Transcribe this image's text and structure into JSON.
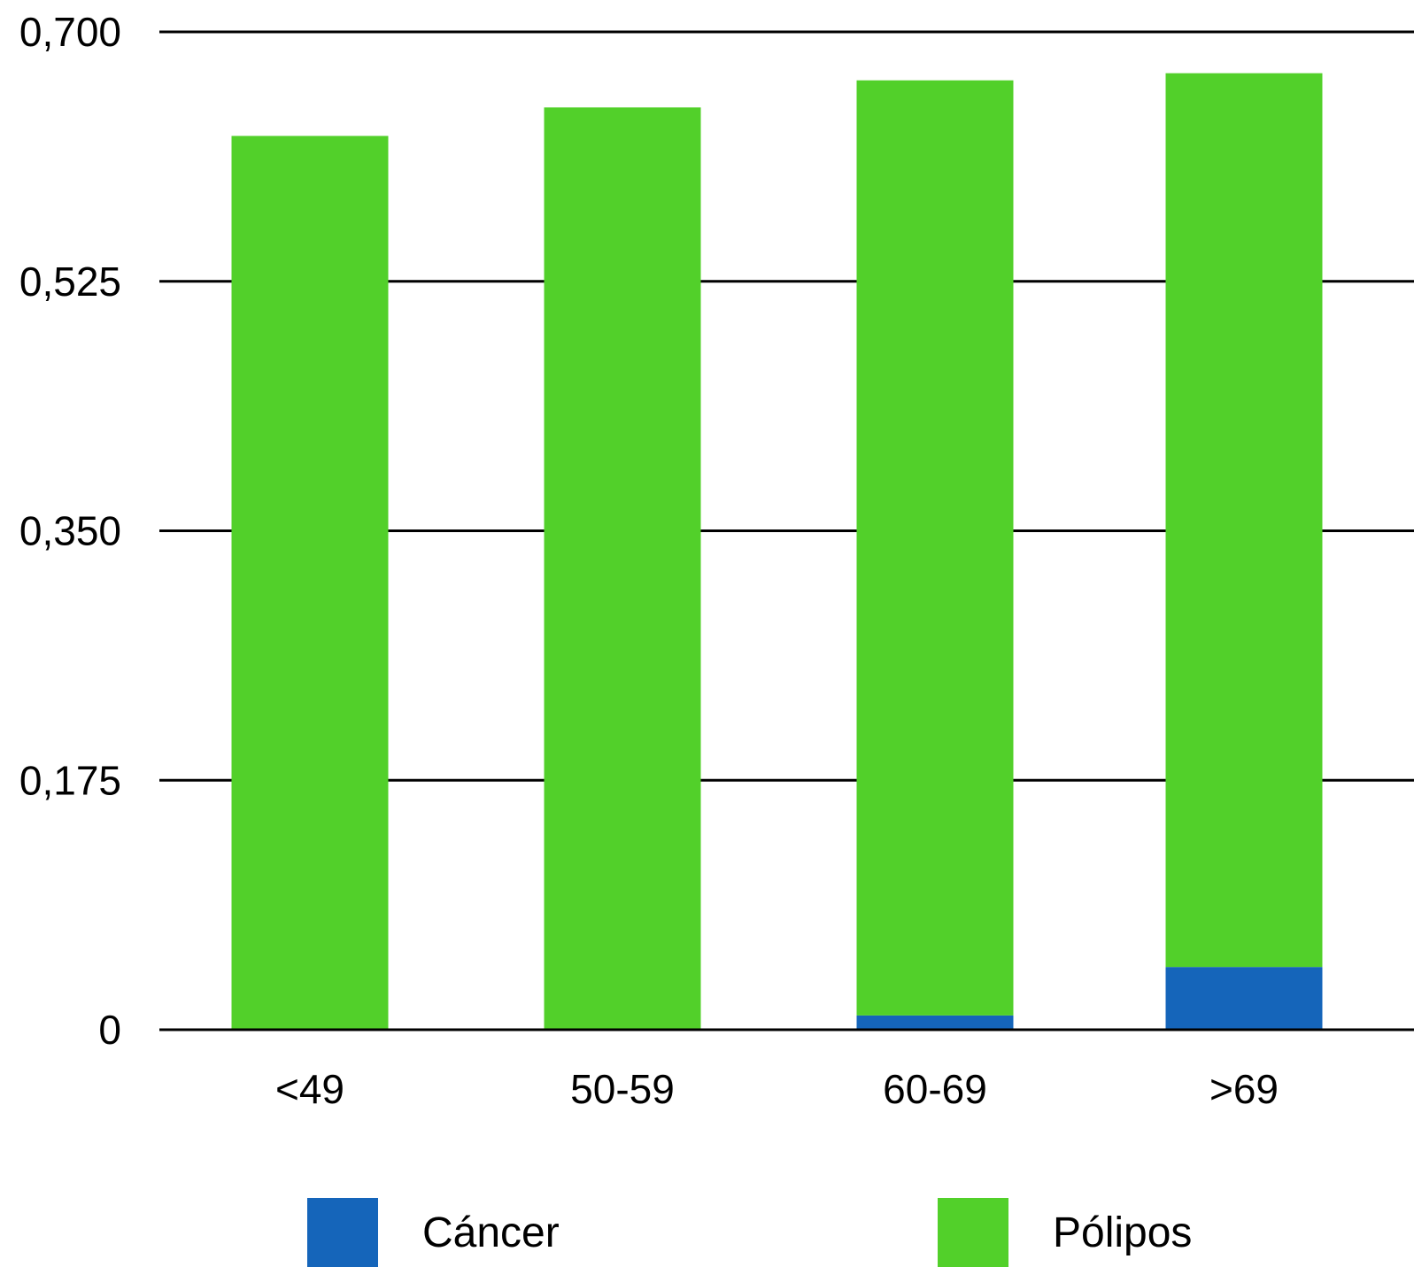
{
  "chart_data": {
    "type": "bar",
    "stacked": true,
    "categories": [
      "<49",
      "50-59",
      "60-69",
      ">69"
    ],
    "series": [
      {
        "name": "Cáncer",
        "color": "#1565BA",
        "values": [
          0,
          0,
          0.01,
          0.044
        ]
      },
      {
        "name": "Pólipos",
        "color": "#52D02A",
        "values": [
          0.627,
          0.647,
          0.656,
          0.627
        ]
      }
    ],
    "ylim": [
      0,
      0.7
    ],
    "yticks": [
      0,
      0.175,
      0.35,
      0.525,
      0.7
    ],
    "ytick_labels": [
      "0",
      "0,175",
      "0,350",
      "0,525",
      "0,700"
    ],
    "grid": true,
    "legend_position": "bottom",
    "title": "",
    "xlabel": "",
    "ylabel": ""
  }
}
